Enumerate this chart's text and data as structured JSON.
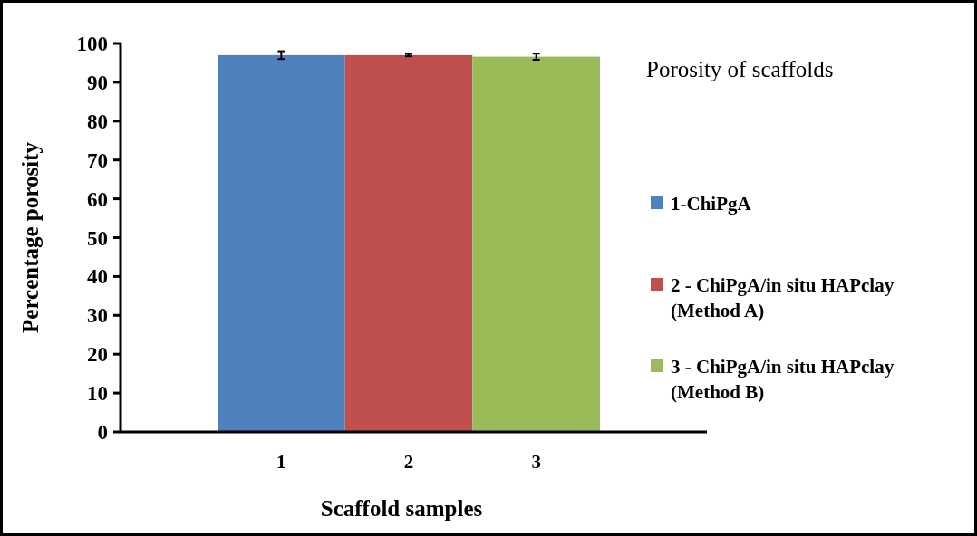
{
  "chart_data": {
    "type": "bar",
    "title": "Porosity of scaffolds",
    "xlabel": "Scaffold samples",
    "ylabel": "Percentage porosity",
    "categories": [
      "1",
      "2",
      "3"
    ],
    "stacked": true,
    "ylim": [
      0,
      100
    ],
    "yticks": [
      0,
      10,
      20,
      30,
      40,
      50,
      60,
      70,
      80,
      90,
      100
    ],
    "legend": "right",
    "grid": false,
    "series": [
      {
        "name": "1-ChiPgA",
        "color": "#4f81bd",
        "values": [
          97,
          null,
          null
        ],
        "errors": [
          1,
          null,
          null
        ]
      },
      {
        "name": "2 - ChiPgA/in situ HAPclay (Method A)",
        "color": "#c0504d",
        "values": [
          null,
          97,
          null
        ],
        "errors": [
          null,
          0.3,
          null
        ]
      },
      {
        "name": "3 - ChiPgA/in situ HAPclay (Method B)",
        "color": "#9bbb59",
        "values": [
          null,
          null,
          96.6
        ],
        "errors": [
          null,
          null,
          0.8
        ]
      }
    ]
  }
}
